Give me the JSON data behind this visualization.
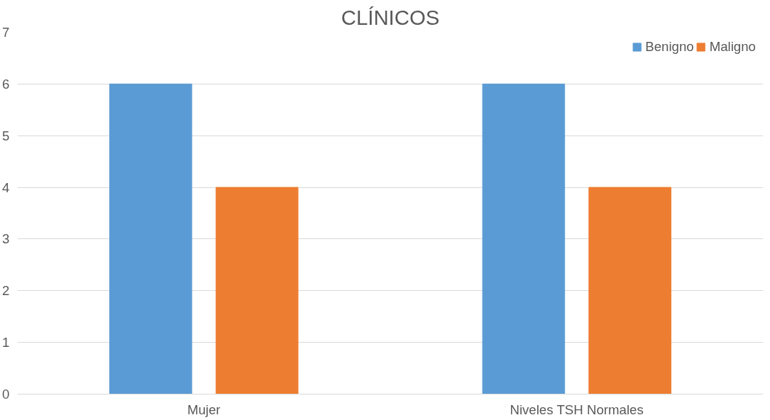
{
  "chart_data": {
    "type": "bar",
    "title": "CLÍNICOS",
    "categories": [
      "Mujer",
      "Niveles TSH Normales"
    ],
    "series": [
      {
        "name": "Benigno",
        "color": "#5b9bd5",
        "values": [
          6,
          6
        ]
      },
      {
        "name": "Maligno",
        "color": "#ed7d31",
        "values": [
          4,
          4
        ]
      }
    ],
    "ylim": [
      0,
      7
    ],
    "yticks": [
      0,
      1,
      2,
      3,
      4,
      5,
      6,
      7
    ],
    "grid": "y",
    "legend": "top right"
  }
}
